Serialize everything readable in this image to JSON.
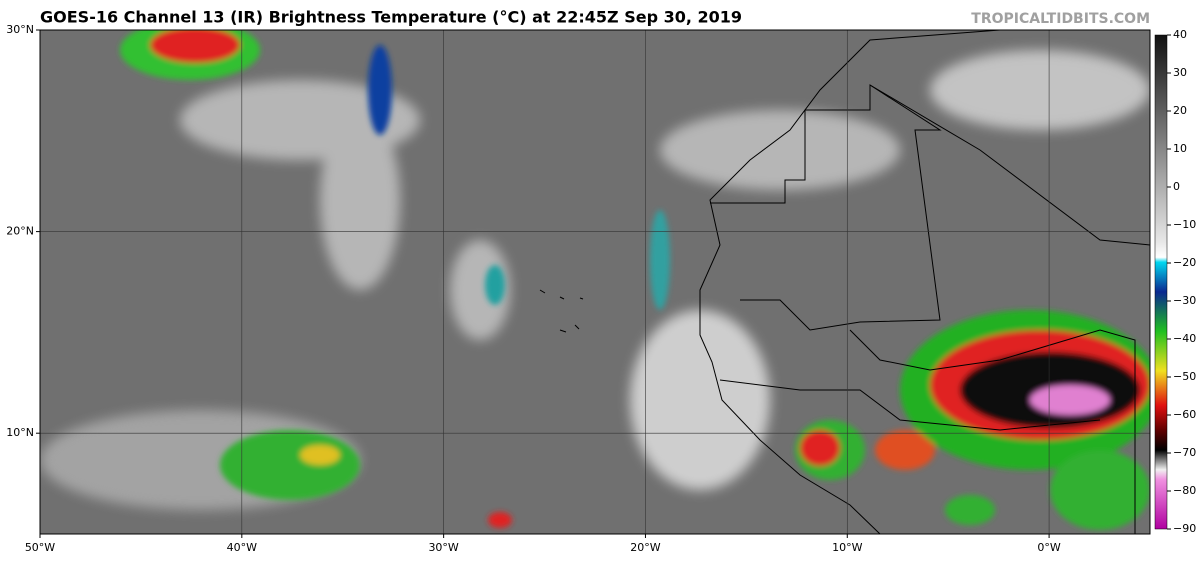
{
  "header": {
    "title": "GOES-16 Channel 13 (IR) Brightness Temperature (°C) at 22:45Z Sep 30, 2019",
    "credit": "TROPICALTIDBITS.COM"
  },
  "map": {
    "xlim": [
      -50,
      5
    ],
    "ylim": [
      5,
      30
    ],
    "lat_ticks": [
      {
        "value": 30,
        "label": "30°N"
      },
      {
        "value": 20,
        "label": "20°N"
      },
      {
        "value": 10,
        "label": "10°N"
      }
    ],
    "lon_ticks": [
      {
        "value": -50,
        "label": "50°W"
      },
      {
        "value": -40,
        "label": "40°W"
      },
      {
        "value": -30,
        "label": "30°W"
      },
      {
        "value": -20,
        "label": "20°W"
      },
      {
        "value": -10,
        "label": "10°W"
      },
      {
        "value": 0,
        "label": "0°W"
      }
    ]
  },
  "colorbar": {
    "lim": [
      -90,
      40
    ],
    "ticks": [
      40,
      30,
      20,
      10,
      0,
      {
        "value": -10,
        "label": "−10"
      },
      {
        "value": -20,
        "label": "−20"
      },
      {
        "value": -30,
        "label": "−30"
      },
      {
        "value": -40,
        "label": "−40"
      },
      {
        "value": -50,
        "label": "−50"
      },
      {
        "value": -60,
        "label": "−60"
      },
      {
        "value": -70,
        "label": "−70"
      },
      {
        "value": -80,
        "label": "−80"
      },
      {
        "value": -90,
        "label": "−90"
      }
    ]
  }
}
